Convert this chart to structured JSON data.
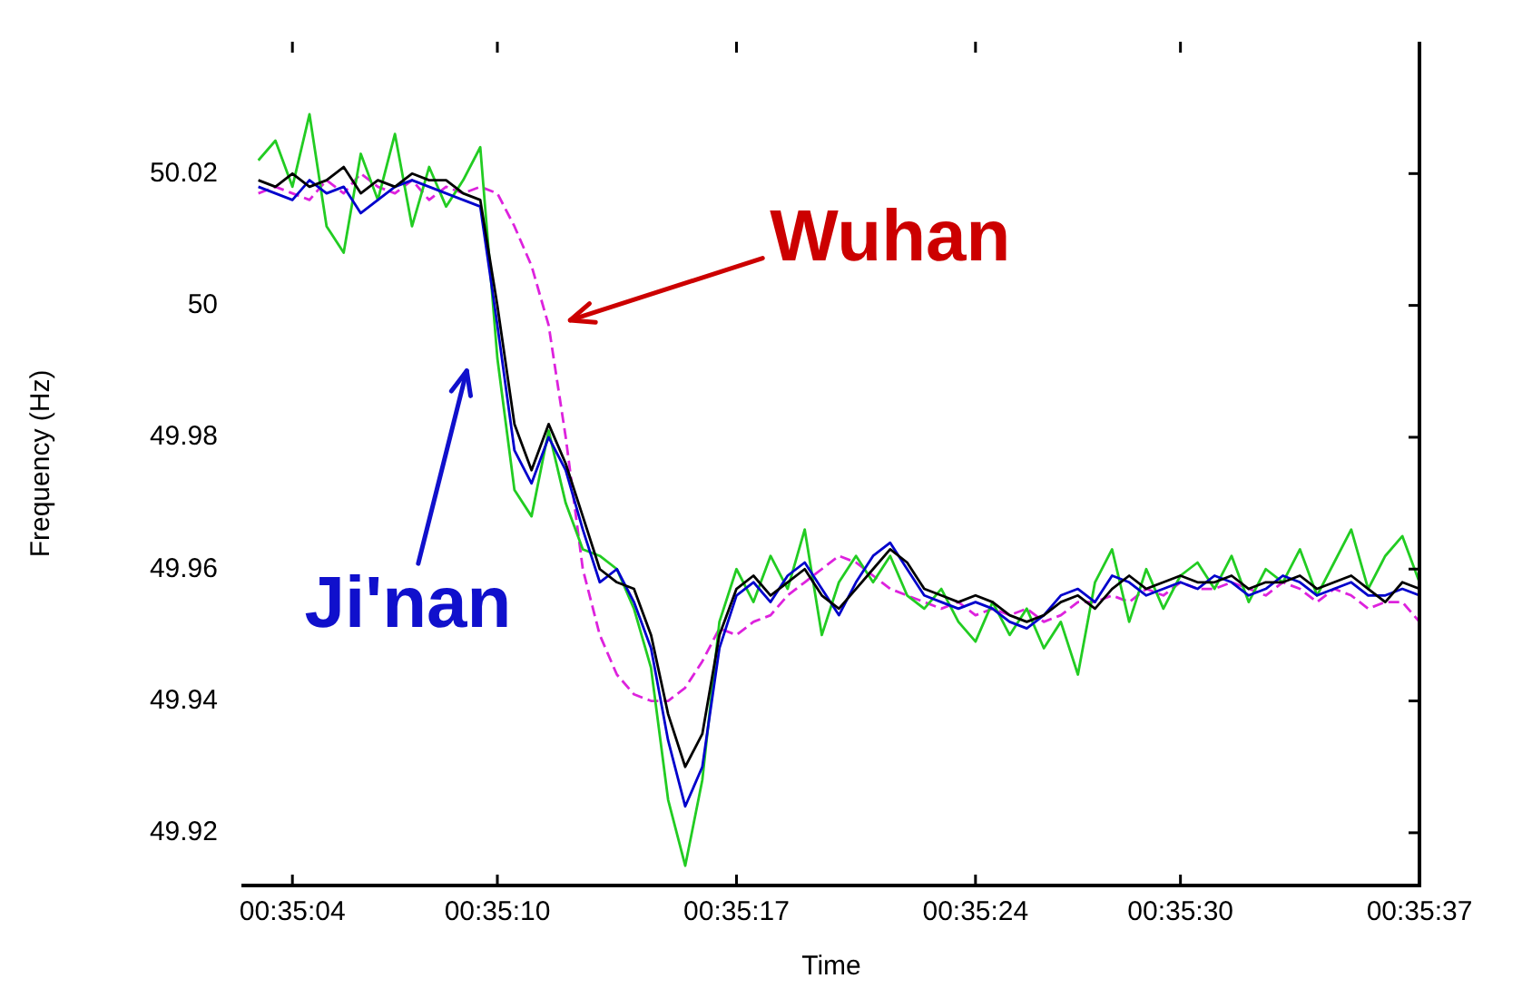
{
  "chart_data": {
    "type": "line",
    "xlabel": "Time",
    "ylabel": "Frequency (Hz)",
    "x": [
      0.584167,
      0.584306,
      0.584444,
      0.584583,
      0.584722,
      0.584861,
      0.585,
      0.585139,
      0.585278,
      0.585417,
      0.585556,
      0.585694,
      0.585833,
      0.585972,
      0.586111,
      0.58625,
      0.586389,
      0.586528,
      0.586667,
      0.586806,
      0.586944,
      0.587083,
      0.587222,
      0.587361,
      0.5875,
      0.587639,
      0.587778,
      0.587917,
      0.588056,
      0.588194,
      0.588333,
      0.588472,
      0.588611,
      0.58875,
      0.588889,
      0.589028,
      0.589167,
      0.589306,
      0.589444,
      0.589583,
      0.589722,
      0.589861,
      0.59,
      0.590139,
      0.590278,
      0.590417,
      0.590556,
      0.590694,
      0.590833,
      0.590972,
      0.591111,
      0.59125,
      0.591389,
      0.591528,
      0.591667,
      0.591806,
      0.591944,
      0.592083,
      0.592222,
      0.592361,
      0.5925,
      0.592639,
      0.592778,
      0.592917,
      0.593056,
      0.593194,
      0.593333,
      0.593472,
      0.593611
    ],
    "series": [
      {
        "color": "#000000",
        "values": [
          50.019,
          50.018,
          50.02,
          50.018,
          50.019,
          50.021,
          50.017,
          50.019,
          50.018,
          50.02,
          50.019,
          50.019,
          50.017,
          50.016,
          50.0,
          49.982,
          49.975,
          49.982,
          49.976,
          49.968,
          49.96,
          49.958,
          49.957,
          49.95,
          49.938,
          49.93,
          49.935,
          49.95,
          49.957,
          49.959,
          49.956,
          49.958,
          49.96,
          49.956,
          49.954,
          49.957,
          49.96,
          49.963,
          49.961,
          49.957,
          49.956,
          49.955,
          49.956,
          49.955,
          49.953,
          49.952,
          49.953,
          49.955,
          49.956,
          49.954,
          49.957,
          49.959,
          49.957,
          49.958,
          49.959,
          49.958,
          49.958,
          49.959,
          49.957,
          49.958,
          49.958,
          49.959,
          49.957,
          49.958,
          49.959,
          49.957,
          49.955,
          49.958,
          49.957
        ]
      },
      {
        "color": "#0000cc",
        "values": [
          50.018,
          50.017,
          50.016,
          50.019,
          50.017,
          50.018,
          50.014,
          50.016,
          50.018,
          50.019,
          50.018,
          50.017,
          50.016,
          50.015,
          49.997,
          49.978,
          49.973,
          49.98,
          49.975,
          49.966,
          49.958,
          49.96,
          49.955,
          49.948,
          49.934,
          49.924,
          49.93,
          49.948,
          49.956,
          49.958,
          49.955,
          49.959,
          49.961,
          49.957,
          49.953,
          49.958,
          49.962,
          49.964,
          49.96,
          49.956,
          49.955,
          49.954,
          49.955,
          49.954,
          49.952,
          49.951,
          49.953,
          49.956,
          49.957,
          49.955,
          49.959,
          49.958,
          49.956,
          49.957,
          49.958,
          49.957,
          49.959,
          49.958,
          49.956,
          49.957,
          49.959,
          49.958,
          49.956,
          49.957,
          49.958,
          49.956,
          49.956,
          49.957,
          49.956
        ]
      },
      {
        "color": "#22cc22",
        "values": [
          50.022,
          50.025,
          50.018,
          50.029,
          50.012,
          50.008,
          50.023,
          50.016,
          50.026,
          50.012,
          50.021,
          50.015,
          50.019,
          50.024,
          49.992,
          49.972,
          49.968,
          49.981,
          49.97,
          49.963,
          49.962,
          49.96,
          49.954,
          49.945,
          49.925,
          49.915,
          49.928,
          49.952,
          49.96,
          49.955,
          49.962,
          49.957,
          49.966,
          49.95,
          49.958,
          49.962,
          49.958,
          49.962,
          49.956,
          49.954,
          49.957,
          49.952,
          49.949,
          49.955,
          49.95,
          49.954,
          49.948,
          49.952,
          49.944,
          49.958,
          49.963,
          49.952,
          49.96,
          49.954,
          49.959,
          49.961,
          49.957,
          49.962,
          49.955,
          49.96,
          49.958,
          49.963,
          49.956,
          49.961,
          49.966,
          49.957,
          49.962,
          49.965,
          49.958
        ]
      },
      {
        "color": "#dd22dd",
        "line_style": "dashed",
        "values": [
          50.017,
          50.018,
          50.017,
          50.016,
          50.019,
          50.017,
          50.02,
          50.018,
          50.017,
          50.019,
          50.016,
          50.018,
          50.017,
          50.018,
          50.017,
          50.012,
          50.006,
          49.997,
          49.98,
          49.96,
          49.95,
          49.944,
          49.941,
          49.94,
          49.94,
          49.942,
          49.946,
          49.951,
          49.95,
          49.952,
          49.953,
          49.956,
          49.958,
          49.96,
          49.962,
          49.961,
          49.959,
          49.957,
          49.956,
          49.955,
          49.954,
          49.955,
          49.953,
          49.954,
          49.953,
          49.954,
          49.952,
          49.953,
          49.955,
          49.955,
          49.956,
          49.955,
          49.957,
          49.956,
          49.958,
          49.957,
          49.957,
          49.958,
          49.957,
          49.956,
          49.958,
          49.957,
          49.955,
          49.957,
          49.956,
          49.954,
          49.955,
          49.955,
          49.952
        ]
      }
    ],
    "xlim": [
      0.584044,
      0.593611
    ],
    "ylim": [
      49.912,
      50.04
    ],
    "xticks": [
      {
        "value": 0.584444,
        "label": "00:35:04"
      },
      {
        "value": 0.586111,
        "label": "00:35:10"
      },
      {
        "value": 0.588056,
        "label": "00:35:17"
      },
      {
        "value": 0.59,
        "label": "00:35:24"
      },
      {
        "value": 0.591667,
        "label": "00:35:30"
      },
      {
        "value": 0.593611,
        "label": "00:35:37"
      }
    ],
    "yticks": [
      49.92,
      49.94,
      49.96,
      49.98,
      50,
      50.02
    ],
    "annotations": [
      "Wuhan",
      "Ji'nan"
    ],
    "grid": false,
    "legend": false
  }
}
